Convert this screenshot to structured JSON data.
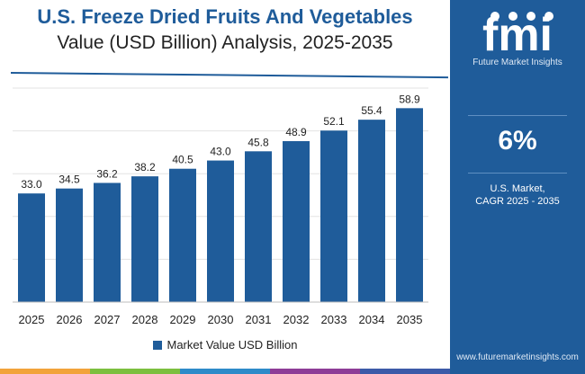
{
  "title": "U.S. Freeze Dried Fruits And Vegetables",
  "subtitle": "Value (USD Billion) Analysis, 2025-2035",
  "chart_data": {
    "type": "bar",
    "title": "U.S. Freeze Dried Fruits And Vegetables",
    "subtitle": "Value (USD Billion) Analysis, 2025-2035",
    "categories": [
      "2025",
      "2026",
      "2027",
      "2028",
      "2029",
      "2030",
      "2031",
      "2032",
      "2033",
      "2034",
      "2035"
    ],
    "series": [
      {
        "name": "Market Value USD Billion",
        "values": [
          33.0,
          34.5,
          36.2,
          38.2,
          40.5,
          43.0,
          45.8,
          48.9,
          52.1,
          55.4,
          58.9
        ],
        "labels": [
          "33.0",
          "34.5",
          "36.2",
          "38.2",
          "40.5",
          "43.0",
          "45.8",
          "48.9",
          "52.1",
          "55.4",
          "58.9"
        ]
      }
    ],
    "xlabel": "",
    "ylabel": "",
    "ylim": [
      0,
      65
    ],
    "grid": true,
    "legend": "bottom-center"
  },
  "legend": {
    "label": "Market Value USD Billion"
  },
  "side_panel": {
    "logo_text": "fmi",
    "logo_subtitle": "Future Market Insights",
    "cagr_value": "6%",
    "cagr_line1": "U.S. Market,",
    "cagr_line2": "CAGR 2025 - 2035",
    "website": "www.futuremarketinsights.com"
  },
  "colors": {
    "bar": "#1f5c9a",
    "panel": "#1f5c9a",
    "footer": [
      "#f2a33a",
      "#7cbf3f",
      "#2e8bc9",
      "#8e3c97",
      "#3c5aa8"
    ]
  }
}
